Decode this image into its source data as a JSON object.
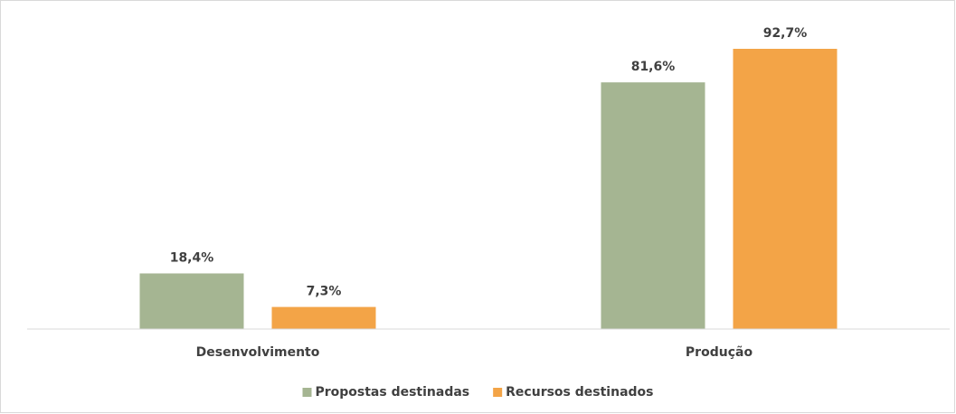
{
  "chart_data": {
    "type": "bar",
    "categories": [
      "Desenvolvimento",
      "Produção"
    ],
    "series": [
      {
        "name": "Propostas destinadas",
        "color": "#a5b592",
        "values": [
          18.4,
          81.6
        ],
        "value_labels": [
          "18,4%",
          "81,6%"
        ]
      },
      {
        "name": "Recursos destinados",
        "color": "#f3a447",
        "values": [
          7.3,
          92.7
        ],
        "value_labels": [
          "7,3%",
          "92,7%"
        ]
      }
    ],
    "ylim": [
      0,
      100
    ],
    "legend": "bottom"
  }
}
